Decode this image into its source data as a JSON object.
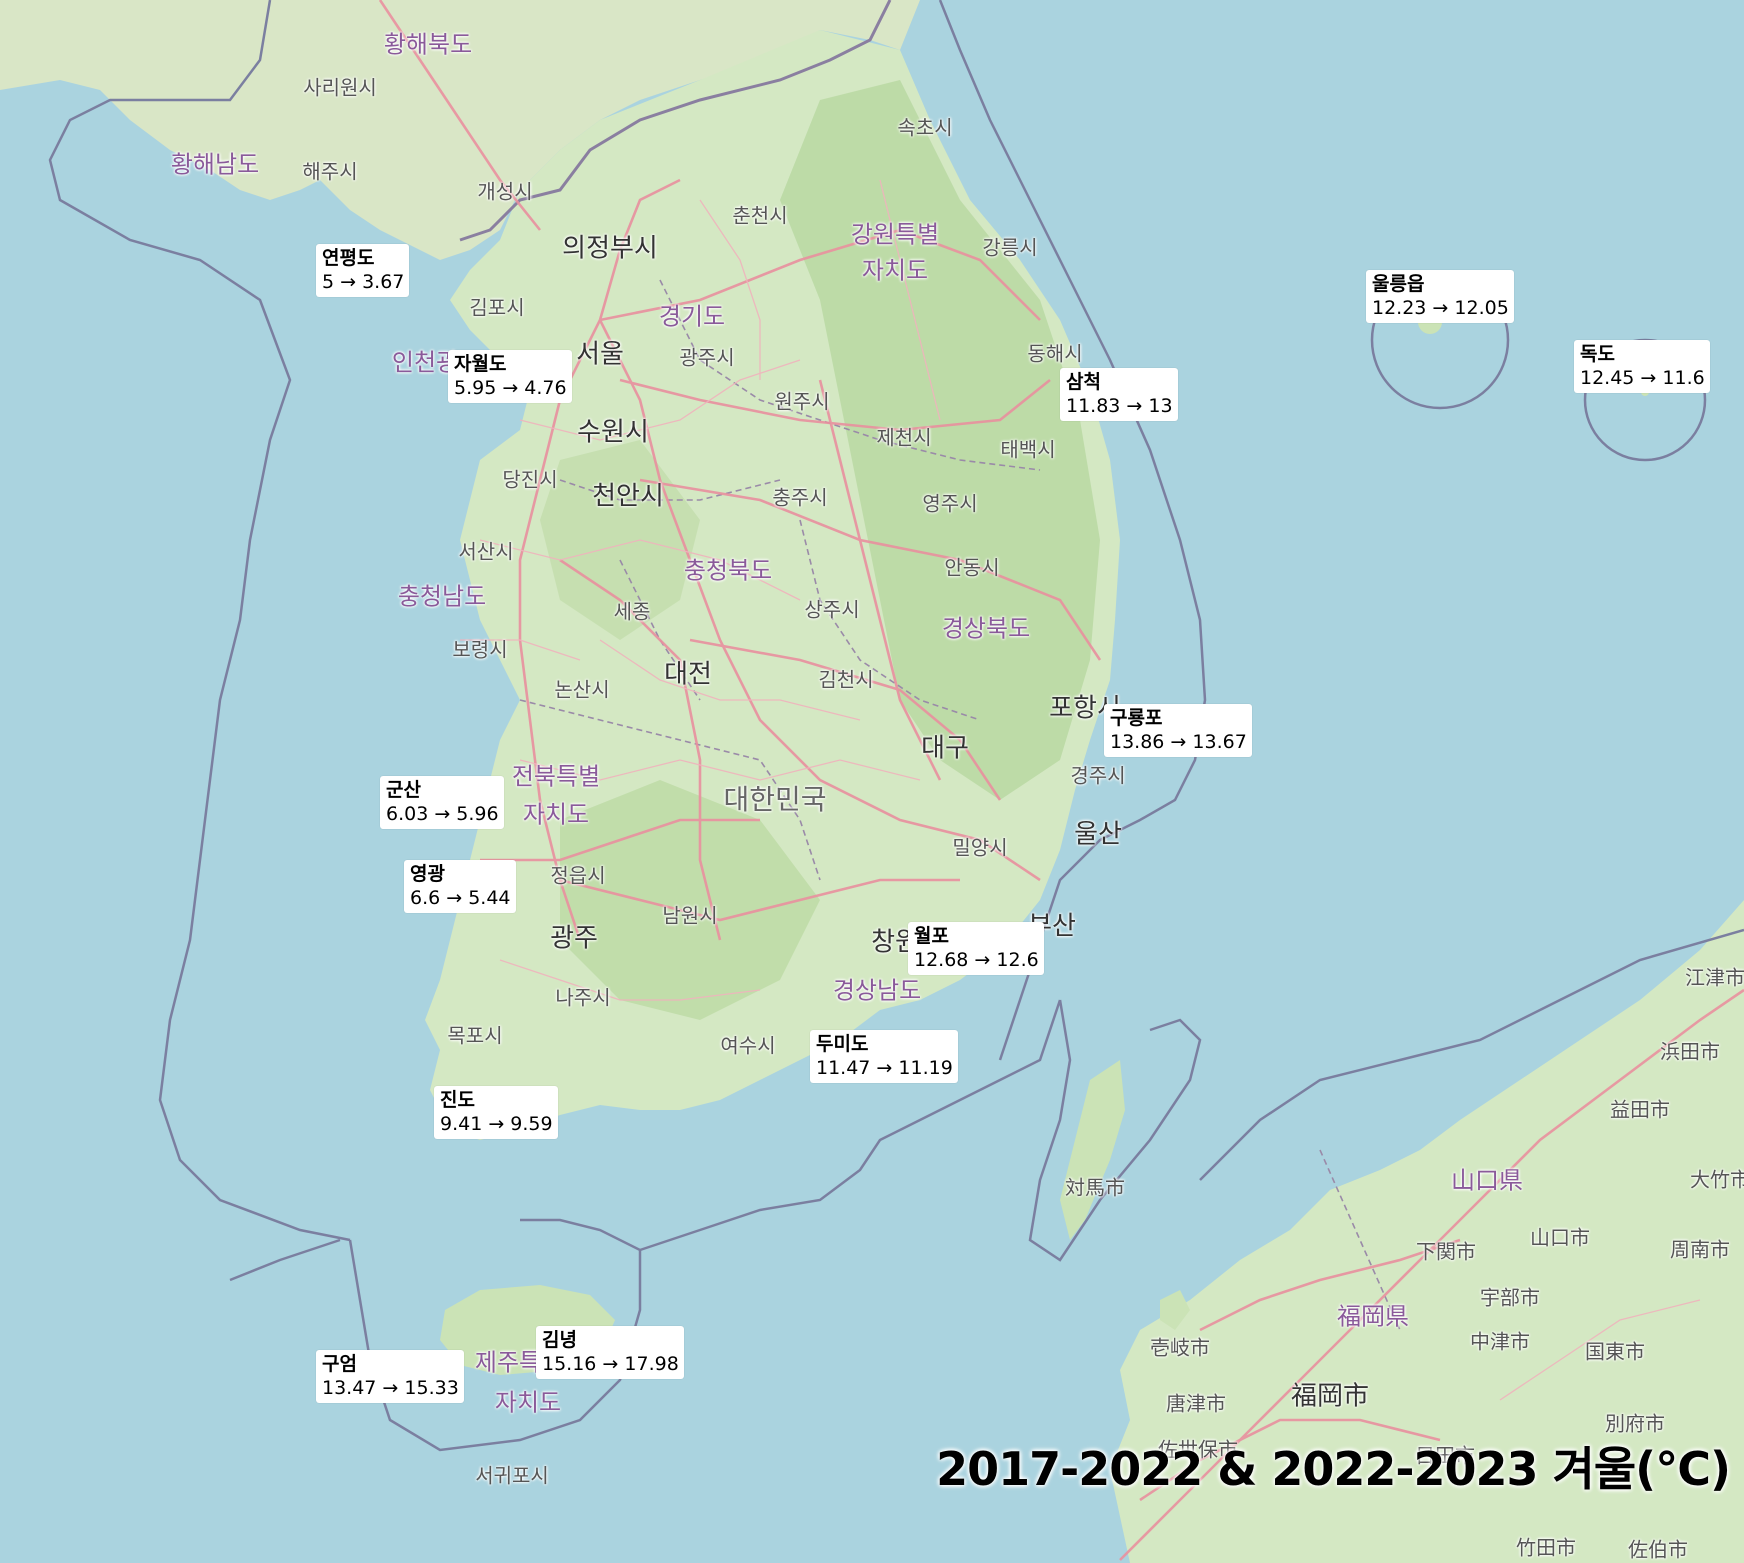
{
  "title": "2017-2022 & 2022-2023 겨울(°C)",
  "colors": {
    "sea": "#aad3df",
    "land": "#d4e8c3",
    "forest": "#b7d69e",
    "road": "#e88c9a",
    "boundary": "#6f6f8f",
    "label_bg": "#ffffff"
  },
  "stations": [
    {
      "name": "연평도",
      "values": "5 → 3.67"
    },
    {
      "name": "자월도",
      "values": "5.95 → 4.76"
    },
    {
      "name": "삼척",
      "values": "11.83 → 13"
    },
    {
      "name": "울릉읍",
      "values": "12.23 → 12.05"
    },
    {
      "name": "독도",
      "values": "12.45 → 11.6"
    },
    {
      "name": "구룡포",
      "values": "13.86 → 13.67"
    },
    {
      "name": "군산",
      "values": "6.03 → 5.96"
    },
    {
      "name": "영광",
      "values": "6.6 → 5.44"
    },
    {
      "name": "월포",
      "values": "12.68 → 12.6"
    },
    {
      "name": "두미도",
      "values": "11.47 → 11.19"
    },
    {
      "name": "진도",
      "values": "9.41 → 9.59"
    },
    {
      "name": "김녕",
      "values": "15.16 → 17.98"
    },
    {
      "name": "구엄",
      "values": "13.47 → 15.33"
    }
  ],
  "places": [
    "황해북도",
    "사리원시",
    "황해남도",
    "해주시",
    "개성시",
    "속초시",
    "춘천시",
    "강원특별",
    "자치도",
    "강릉시",
    "의정부시",
    "김포시",
    "경기도",
    "서울",
    "광주시",
    "인천광",
    "수원시",
    "원주시",
    "동해시",
    "제천시",
    "태백시",
    "당진시",
    "천안시",
    "충주시",
    "영주시",
    "서산시",
    "충청북도",
    "안동시",
    "충청남도",
    "세종",
    "상주시",
    "경상북도",
    "보령시",
    "대전",
    "논산시",
    "김천시",
    "포항시",
    "전북특별",
    "대구",
    "경주시",
    "자치도",
    "대한민국",
    "울산",
    "정읍시",
    "밀양시",
    "남원시",
    "광주",
    "창원",
    "부산",
    "나주시",
    "경상남도",
    "목포시",
    "여수시",
    "제주특",
    "자치도",
    "서귀포시",
    "対馬市",
    "壱岐市",
    "唐津市",
    "佐世保市",
    "福岡市",
    "福岡県",
    "下関市",
    "山口県",
    "山口市",
    "宇部市",
    "中津市",
    "国東市",
    "別府市",
    "日田市",
    "江津市",
    "浜田市",
    "益田市",
    "大竹市",
    "周南市",
    "竹田市",
    "佐伯市"
  ]
}
